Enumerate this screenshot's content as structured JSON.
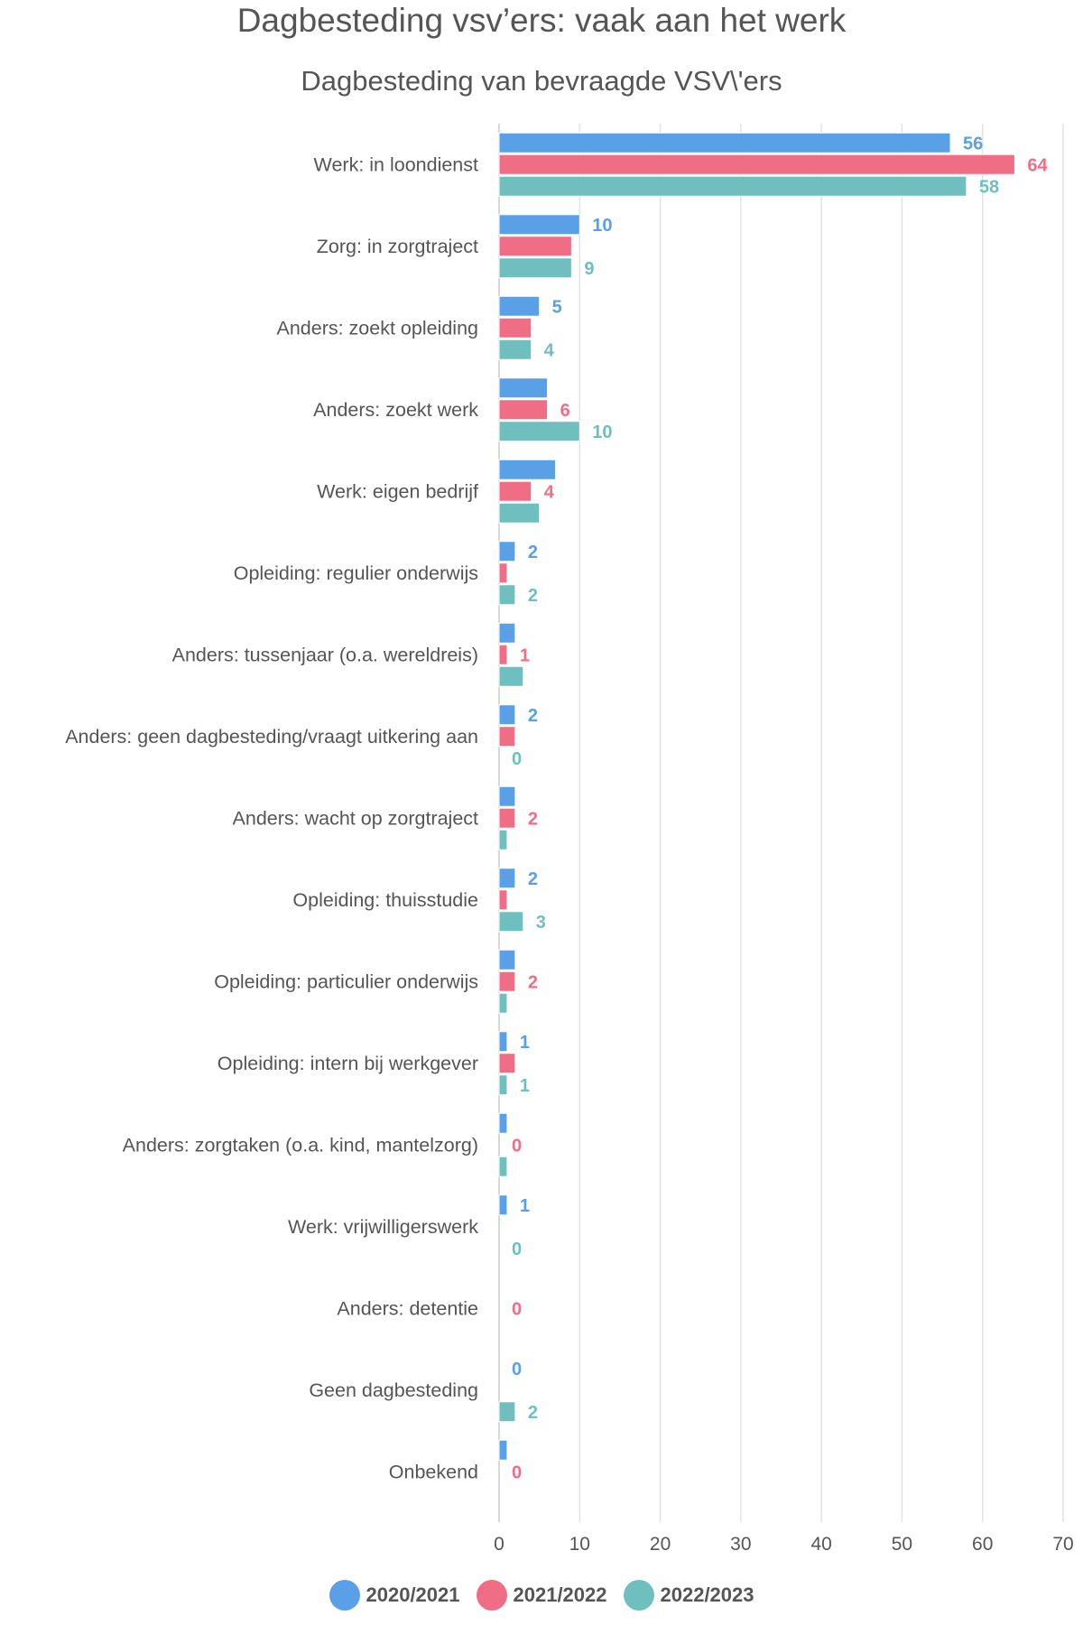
{
  "chart_data": {
    "type": "bar",
    "orientation": "horizontal",
    "title": "Dagbesteding vsv’ers: vaak aan het werk",
    "subtitle": "Dagbesteding van bevraagde VSV\\'ers",
    "xlim": [
      0,
      70
    ],
    "x_ticks": [
      0,
      10,
      20,
      30,
      40,
      50,
      60,
      70
    ],
    "grid": true,
    "legend_position": "bottom",
    "categories": [
      "Werk: in loondienst",
      "Zorg: in zorgtraject",
      "Anders: zoekt opleiding",
      "Anders: zoekt werk",
      "Werk: eigen bedrijf",
      "Opleiding: regulier onderwijs",
      "Anders: tussenjaar (o.a. wereldreis)",
      "Anders: geen dagbesteding/vraagt uitkering   aan",
      "Anders: wacht op zorgtraject",
      "Opleiding: thuisstudie",
      "Opleiding: particulier onderwijs",
      "Opleiding: intern bij werkgever",
      "Anders: zorgtaken (o.a. kind, mantelzorg)",
      "Werk: vrijwilligerswerk",
      "Anders: detentie",
      "Geen dagbesteding",
      "Onbekend"
    ],
    "series": [
      {
        "name": "2020/2021",
        "color": "#5aa0e6",
        "values": [
          56,
          10,
          5,
          6,
          7,
          2,
          2,
          2,
          2,
          2,
          2,
          1,
          1,
          1,
          0,
          0,
          1
        ],
        "labels": [
          "56",
          "10",
          "5",
          "",
          "",
          "2",
          "",
          "2",
          "",
          "2",
          "",
          "1",
          "",
          "1",
          "",
          "0",
          ""
        ]
      },
      {
        "name": "2021/2022",
        "color": "#ef6e86",
        "values": [
          64,
          9,
          4,
          6,
          4,
          1,
          1,
          2,
          2,
          1,
          2,
          2,
          0,
          0,
          0,
          0,
          0
        ],
        "labels": [
          "64",
          "",
          "",
          "6",
          "4",
          "",
          "1",
          "",
          "2",
          "",
          "2",
          "",
          "0",
          "",
          "0",
          "",
          "0"
        ]
      },
      {
        "name": "2022/2023",
        "color": "#6fbfbf",
        "values": [
          58,
          9,
          4,
          10,
          5,
          2,
          3,
          0,
          1,
          3,
          1,
          1,
          1,
          0,
          0,
          2,
          0
        ],
        "labels": [
          "58",
          "9",
          "4",
          "10",
          "",
          "2",
          "",
          "0",
          "",
          "3",
          "",
          "1",
          "",
          "0",
          "",
          "2",
          ""
        ]
      }
    ]
  }
}
